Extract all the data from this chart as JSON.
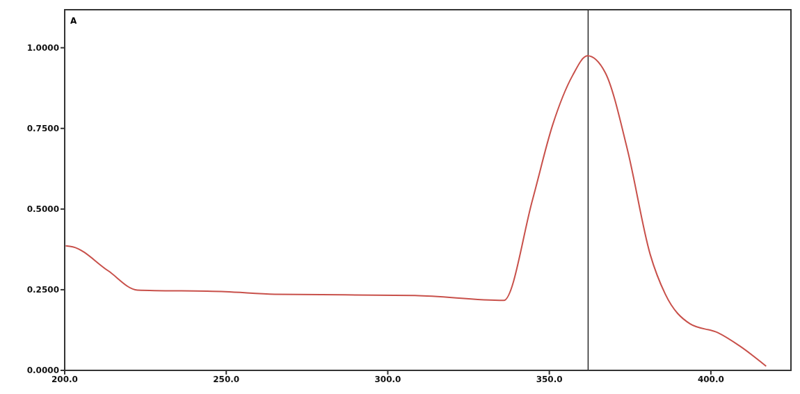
{
  "chart_data": {
    "type": "line",
    "ylabel": "A",
    "x": [
      200.3,
      202.5,
      213.4,
      222.5,
      249.7,
      265.0,
      308.4,
      335.9,
      344.8,
      351.0,
      357.2,
      361.8,
      367.3,
      374.2,
      381.2,
      385.9,
      393.6,
      402.1,
      409.0,
      417.1
    ],
    "series": [
      {
        "color": "#c8504a",
        "values": [
          0.386,
          0.383,
          0.309,
          0.249,
          0.244,
          0.236,
          0.232,
          0.217,
          0.529,
          0.76,
          0.914,
          0.975,
          0.923,
          0.683,
          0.36,
          0.236,
          0.144,
          0.117,
          0.075,
          0.013
        ]
      }
    ],
    "xlim": [
      200,
      425
    ],
    "ylim": [
      0,
      1.12
    ],
    "xticks": [
      {
        "value": 200,
        "label": "200.0"
      },
      {
        "value": 250,
        "label": "250.0"
      },
      {
        "value": 300,
        "label": "300.0"
      },
      {
        "value": 350,
        "label": "350.0"
      },
      {
        "value": 400,
        "label": "400.0"
      }
    ],
    "yticks": [
      {
        "value": 0,
        "label": "0.0000"
      },
      {
        "value": 0.25,
        "label": "0.2500"
      },
      {
        "value": 0.5,
        "label": "0.5000"
      },
      {
        "value": 0.75,
        "label": "0.7500"
      },
      {
        "value": 1,
        "label": "1.0000"
      }
    ],
    "ref_lines": [
      {
        "axis": "x",
        "value": 362,
        "color": "#000000"
      }
    ],
    "grid": false,
    "legend": false,
    "marker": "none",
    "line_style": "solid"
  }
}
